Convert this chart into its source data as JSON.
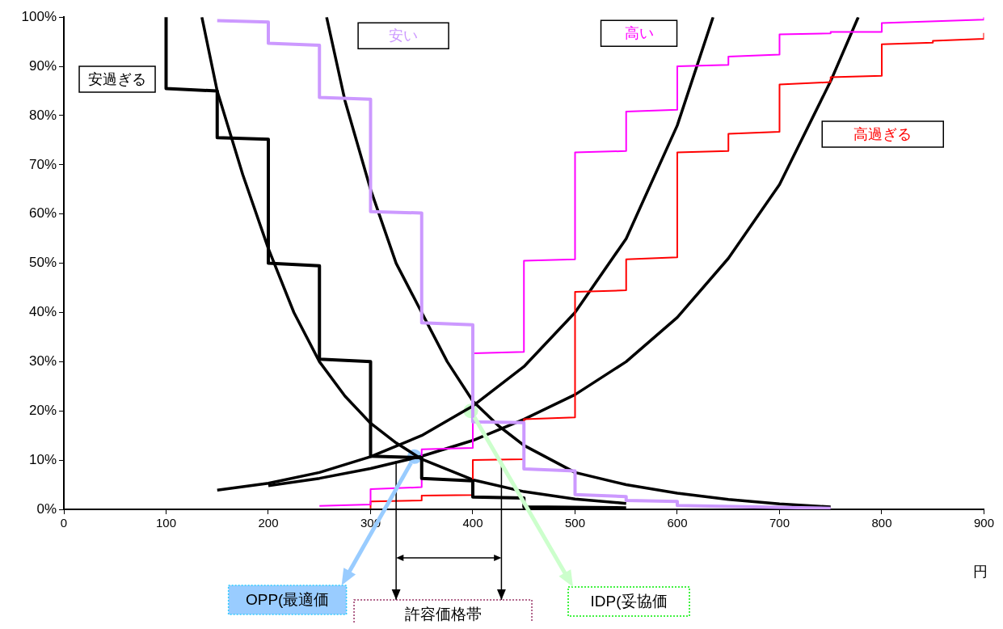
{
  "chart_data": {
    "type": "line",
    "xlabel": "円",
    "marker": "none",
    "legend": false,
    "grid": false,
    "xlim": [
      0,
      900
    ],
    "xticks": [
      0,
      100,
      200,
      300,
      400,
      500,
      600,
      700,
      800,
      900
    ],
    "ylim": [
      0,
      100
    ],
    "yticks": [
      {
        "value": 0,
        "label": "0%"
      },
      {
        "value": 10,
        "label": "10%"
      },
      {
        "value": 20,
        "label": "20%"
      },
      {
        "value": 30,
        "label": "30%"
      },
      {
        "value": 40,
        "label": "40%"
      },
      {
        "value": 50,
        "label": "50%"
      },
      {
        "value": 60,
        "label": "60%"
      },
      {
        "value": 70,
        "label": "70%"
      },
      {
        "value": 80,
        "label": "80%"
      },
      {
        "value": 90,
        "label": "90%"
      },
      {
        "value": 100,
        "label": "100%"
      }
    ],
    "series": [
      {
        "name": "安過ぎる",
        "type": "line",
        "color": "#000000",
        "x": [
          100,
          100,
          150,
          150,
          200,
          200,
          250,
          250,
          300,
          300,
          350,
          350,
          400,
          400,
          450,
          450,
          550
        ],
        "values": [
          100,
          85.5,
          85,
          75.5,
          75.2,
          50,
          49.5,
          30.5,
          30,
          10.8,
          10.5,
          6.3,
          5.8,
          2.5,
          2.3,
          0.5,
          0.3
        ]
      },
      {
        "name": "安い",
        "type": "line",
        "color": "#cc99ff",
        "x": [
          150,
          200,
          200,
          250,
          250,
          300,
          300,
          350,
          350,
          400,
          400,
          450,
          450,
          500,
          500,
          550,
          550,
          600,
          600,
          750
        ],
        "values": [
          99.3,
          99,
          94.7,
          94.3,
          83.7,
          83.3,
          60.5,
          60.2,
          37.9,
          37.5,
          17.8,
          17.6,
          8.2,
          7.8,
          3,
          2.6,
          1.8,
          1.6,
          0.8,
          0.2
        ]
      },
      {
        "name": "高い",
        "type": "line",
        "color": "#ff00ff",
        "x": [
          250,
          300,
          300,
          350,
          350,
          400,
          400,
          450,
          450,
          500,
          500,
          550,
          550,
          600,
          600,
          650,
          650,
          700,
          700,
          750,
          750,
          800,
          800,
          900,
          900
        ],
        "values": [
          0.7,
          1,
          4.1,
          4.5,
          12.2,
          12.5,
          31.7,
          32,
          50.5,
          50.8,
          72.5,
          72.8,
          80.8,
          81.2,
          90,
          90.3,
          92,
          92.4,
          96.5,
          96.7,
          97,
          97,
          98.8,
          99.5,
          100
        ]
      },
      {
        "name": "高過ぎる",
        "type": "line",
        "color": "#ff0000",
        "x": [
          300,
          300,
          350,
          350,
          400,
          400,
          450,
          450,
          500,
          500,
          550,
          550,
          600,
          600,
          650,
          650,
          700,
          700,
          750,
          750,
          800,
          800,
          850,
          850,
          900,
          900
        ],
        "values": [
          0.2,
          1.6,
          1.8,
          2.8,
          2.9,
          10,
          10.2,
          18.3,
          18.7,
          44.2,
          44.5,
          50.8,
          51.2,
          72.5,
          72.8,
          76.3,
          76.7,
          86.3,
          86.8,
          87.8,
          88.1,
          94.5,
          94.8,
          95.2,
          95.6,
          96.8
        ]
      },
      {
        "type": "line",
        "color": "#000000",
        "x": [
          135,
          150,
          175,
          200,
          225,
          250,
          275,
          300,
          325,
          350,
          400,
          450,
          500,
          550
        ],
        "values": [
          100,
          85,
          68,
          53,
          40,
          30,
          23,
          17.5,
          13.5,
          10.2,
          6,
          3.6,
          2.1,
          1.2
        ]
      },
      {
        "type": "line",
        "color": "#000000",
        "x": [
          257,
          275,
          300,
          325,
          350,
          375,
          400,
          425,
          450,
          500,
          550,
          600,
          650,
          700,
          750
        ],
        "values": [
          100,
          83,
          65,
          50,
          40,
          30,
          22,
          17,
          13,
          7.5,
          5,
          3.3,
          2,
          1.1,
          0.5
        ]
      },
      {
        "type": "line",
        "color": "#000000",
        "x": [
          150,
          200,
          250,
          300,
          350,
          400,
          450,
          500,
          550,
          600,
          635
        ],
        "values": [
          3.9,
          5.3,
          7.5,
          10.7,
          15,
          21,
          29,
          40,
          55,
          78,
          100
        ]
      },
      {
        "type": "line",
        "color": "#000000",
        "x": [
          200,
          250,
          300,
          350,
          400,
          450,
          500,
          550,
          600,
          650,
          700,
          750,
          777
        ],
        "values": [
          4.8,
          6.3,
          8.3,
          10.8,
          14,
          18.3,
          23.3,
          30,
          39,
          51,
          66,
          87,
          100
        ]
      },
      {
        "type": "scatter",
        "marker": "circle",
        "colors": [
          "#99ccff",
          "#ccffcc"
        ],
        "x": [
          343,
          398
        ],
        "values": [
          10.7,
          20
        ]
      }
    ],
    "annotations": [
      "OPP(最適価",
      "IDP(妥協価",
      "許容価格帯"
    ],
    "ref_lines": [
      {
        "axis": "x",
        "value": 325
      },
      {
        "axis": "x",
        "value": 428
      }
    ]
  }
}
